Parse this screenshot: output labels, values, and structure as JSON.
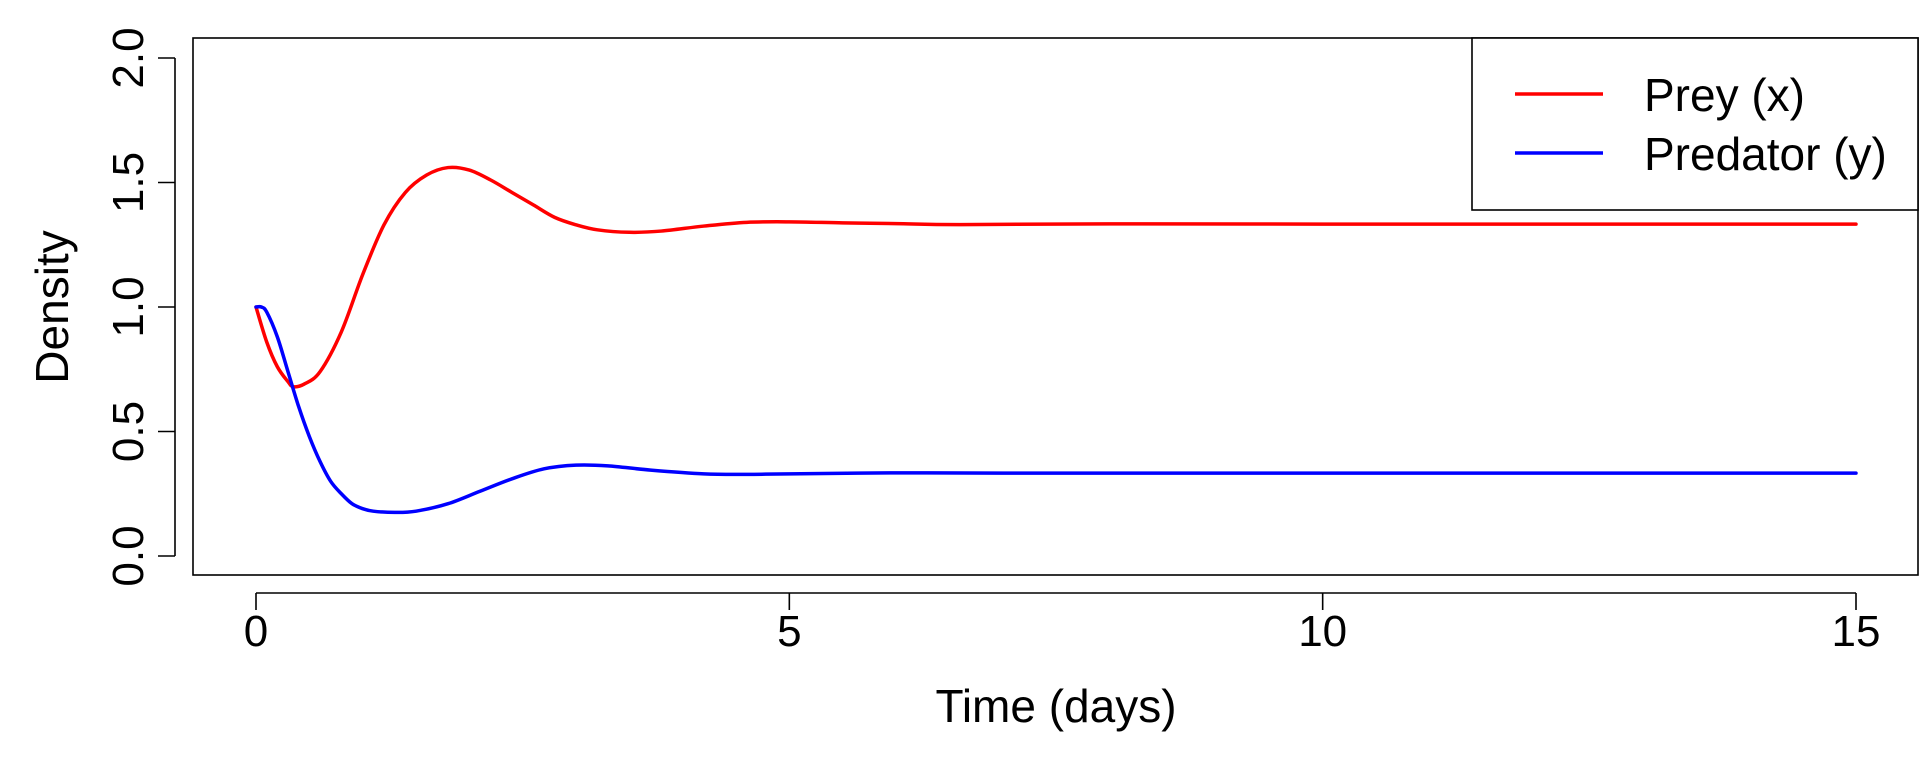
{
  "chart_data": {
    "type": "line",
    "title": "",
    "xlabel": "Time (days)",
    "ylabel": "Density",
    "xlim": [
      0,
      15
    ],
    "ylim": [
      0,
      2
    ],
    "x_ticks": [
      "0",
      "5",
      "10",
      "15"
    ],
    "y_ticks": [
      "0.0",
      "0.5",
      "1.0",
      "1.5",
      "2.0"
    ],
    "grid": false,
    "legend_position": "top-right",
    "series": [
      {
        "name": "Prey (x)",
        "color": "#ff0000",
        "points": [
          [
            0,
            1.0
          ],
          [
            0.1,
            0.86
          ],
          [
            0.2,
            0.76
          ],
          [
            0.3,
            0.7
          ],
          [
            0.35,
            0.68
          ],
          [
            0.45,
            0.69
          ],
          [
            0.6,
            0.74
          ],
          [
            0.8,
            0.9
          ],
          [
            1.0,
            1.13
          ],
          [
            1.2,
            1.33
          ],
          [
            1.4,
            1.46
          ],
          [
            1.6,
            1.53
          ],
          [
            1.8,
            1.56
          ],
          [
            2.0,
            1.55
          ],
          [
            2.2,
            1.51
          ],
          [
            2.4,
            1.46
          ],
          [
            2.6,
            1.41
          ],
          [
            2.8,
            1.36
          ],
          [
            3.0,
            1.33
          ],
          [
            3.2,
            1.31
          ],
          [
            3.5,
            1.3
          ],
          [
            3.8,
            1.305
          ],
          [
            4.2,
            1.325
          ],
          [
            4.6,
            1.34
          ],
          [
            5.0,
            1.342
          ],
          [
            5.5,
            1.338
          ],
          [
            6.0,
            1.335
          ],
          [
            6.6,
            1.331
          ],
          [
            8.0,
            1.334
          ],
          [
            10.0,
            1.333
          ],
          [
            12.0,
            1.333
          ],
          [
            15.0,
            1.333
          ]
        ]
      },
      {
        "name": "Predator (y)",
        "color": "#0000ff",
        "points": [
          [
            0,
            1.0
          ],
          [
            0.05,
            1.0
          ],
          [
            0.1,
            0.98
          ],
          [
            0.2,
            0.88
          ],
          [
            0.3,
            0.74
          ],
          [
            0.4,
            0.6
          ],
          [
            0.5,
            0.48
          ],
          [
            0.6,
            0.38
          ],
          [
            0.7,
            0.3
          ],
          [
            0.8,
            0.25
          ],
          [
            0.9,
            0.21
          ],
          [
            1.0,
            0.19
          ],
          [
            1.1,
            0.18
          ],
          [
            1.3,
            0.175
          ],
          [
            1.5,
            0.18
          ],
          [
            1.8,
            0.21
          ],
          [
            2.1,
            0.26
          ],
          [
            2.4,
            0.31
          ],
          [
            2.7,
            0.35
          ],
          [
            3.0,
            0.365
          ],
          [
            3.3,
            0.362
          ],
          [
            3.7,
            0.345
          ],
          [
            4.2,
            0.33
          ],
          [
            4.6,
            0.328
          ],
          [
            5.0,
            0.33
          ],
          [
            6.0,
            0.334
          ],
          [
            7.0,
            0.333
          ],
          [
            9.0,
            0.333
          ],
          [
            12.0,
            0.333
          ],
          [
            15.0,
            0.333
          ]
        ]
      }
    ]
  }
}
